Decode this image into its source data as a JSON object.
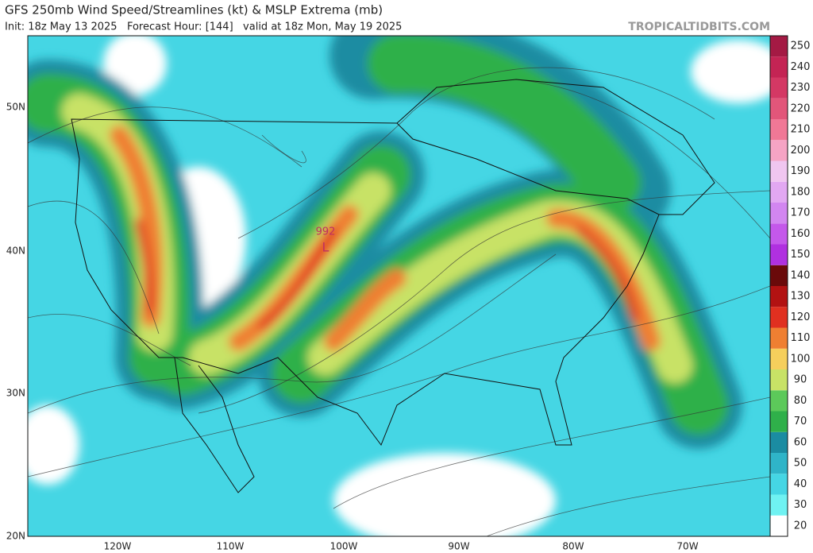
{
  "header": {
    "title": "GFS 250mb Wind Speed/Streamlines (kt) & MSLP Extrema (mb)",
    "subtitle": "Init: 18z May 13 2025   Forecast Hour: [144]   valid at 18z Mon, May 19 2025",
    "source": "TROPICALTIDBITS.COM"
  },
  "map": {
    "lat_labels": [
      "50N",
      "40N",
      "30N",
      "20N"
    ],
    "lon_labels": [
      "120W",
      "110W",
      "100W",
      "90W",
      "80W",
      "70W"
    ],
    "pressure_label": "992",
    "low_symbol": "L"
  },
  "colorbar": {
    "ticks": [
      20,
      30,
      40,
      50,
      60,
      70,
      80,
      90,
      100,
      110,
      120,
      130,
      140,
      150,
      160,
      170,
      180,
      190,
      200,
      210,
      220,
      230,
      240,
      250
    ],
    "colors": [
      "#ffffff",
      "#6ff2f2",
      "#45d6e4",
      "#2fb4c8",
      "#1b8ca2",
      "#2fb04a",
      "#5cc95a",
      "#c8e266",
      "#f6cf5c",
      "#ef7f32",
      "#e03020",
      "#b21212",
      "#6a0a0a",
      "#b030e0",
      "#c458ea",
      "#d286f0",
      "#e2a8f2",
      "#f0c6f0",
      "#f6a4c4",
      "#f07896",
      "#e2567a",
      "#d43864",
      "#c42454",
      "#a41a44"
    ]
  }
}
